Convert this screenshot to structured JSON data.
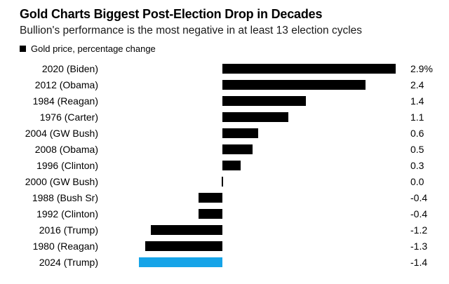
{
  "colors": {
    "bar_default": "#000000",
    "bar_highlight": "#16a4e8",
    "legend_swatch": "#000000"
  },
  "chart_data": {
    "type": "bar",
    "orientation": "horizontal",
    "title": "Gold Charts Biggest Post-Election Drop in Decades",
    "subtitle": "Bullion's performance is the most negative in at least 13 election cycles",
    "legend_label": "Gold price, percentage change",
    "legend_position": "top-left",
    "grid": false,
    "unit": "percent",
    "xlim": [
      -1.4,
      2.9
    ],
    "value_label_position": "right-column",
    "categories": [
      "2020 (Biden)",
      "2012 (Obama)",
      "1984 (Reagan)",
      "1976 (Carter)",
      "2004 (GW Bush)",
      "2008 (Obama)",
      "1996 (Clinton)",
      "2000 (GW Bush)",
      "1988 (Bush Sr)",
      "1992 (Clinton)",
      "2016 (Trump)",
      "1980 (Reagan)",
      "2024 (Trump)"
    ],
    "values": [
      2.9,
      2.4,
      1.4,
      1.1,
      0.6,
      0.5,
      0.3,
      0.0,
      -0.4,
      -0.4,
      -1.2,
      -1.3,
      -1.4
    ],
    "value_labels": [
      "2.9%",
      "2.4",
      "1.4",
      "1.1",
      "0.6",
      "0.5",
      "0.3",
      "0.0",
      "-0.4",
      "-0.4",
      "-1.2",
      "-1.3",
      "-1.4"
    ],
    "highlight_category": "2024 (Trump)",
    "highlight_index": 12
  }
}
